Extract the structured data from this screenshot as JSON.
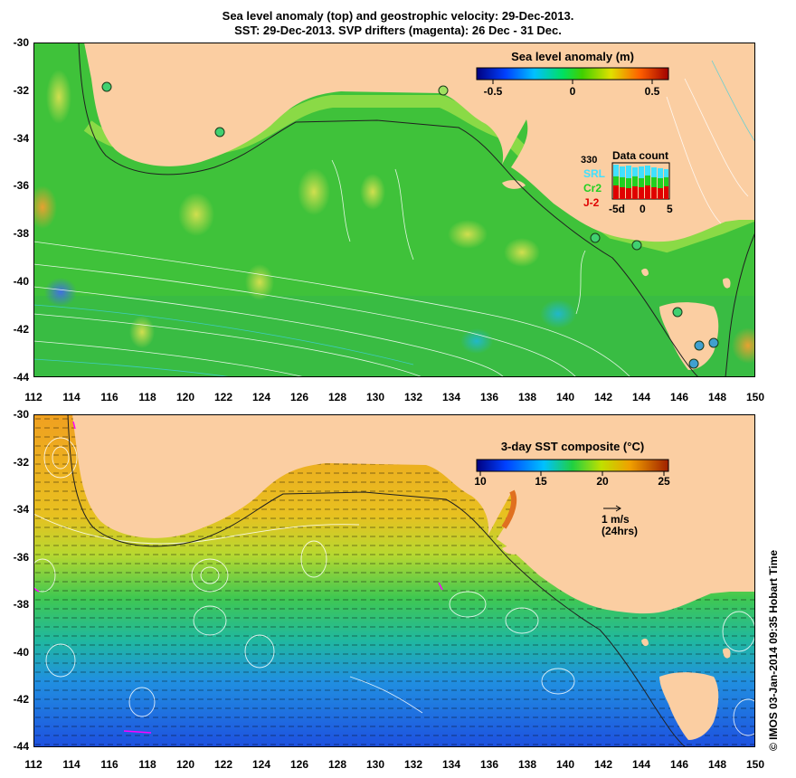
{
  "title": {
    "line1": "Sea level anomaly (top) and geostrophic velocity: 29-Dec-2013.",
    "line2": "SST: 29-Dec-2013. SVP drifters (magenta): 26 Dec - 31 Dec."
  },
  "axes": {
    "lat_labels": [
      "-30",
      "-32",
      "-34",
      "-36",
      "-38",
      "-40",
      "-42",
      "-44"
    ],
    "lon_labels": [
      "112",
      "114",
      "116",
      "118",
      "120",
      "122",
      "124",
      "126",
      "128",
      "130",
      "132",
      "134",
      "136",
      "138",
      "140",
      "142",
      "144",
      "146",
      "148",
      "150"
    ]
  },
  "top_panel": {
    "colorbar": {
      "title": "Sea level anomaly (m)",
      "ticks": [
        "-0.5",
        "0",
        "0.5"
      ],
      "range": [
        -0.6,
        0.6
      ]
    },
    "data_count": {
      "title": "Data count",
      "max_label": "330",
      "satellites": [
        "SRL",
        "Cr2",
        "J-2"
      ],
      "x_ticks": [
        "-5d",
        "0",
        "5"
      ]
    }
  },
  "bottom_panel": {
    "colorbar": {
      "title": "3-day SST composite (°C)",
      "ticks": [
        "10",
        "15",
        "20",
        "25"
      ],
      "range": [
        10,
        25
      ]
    },
    "velocity_scale": {
      "label": "1 m/s",
      "sub_label": "(24hrs)"
    }
  },
  "credit": "© IMOS 03-Jan-2014 09:35 Hobart Time",
  "colors": {
    "land": "#fbcea2",
    "ocean_slu": "#33cc33",
    "sst_warm": "#f0a020",
    "sst_cold": "#1e5ae6",
    "drifters": "#ff00ff"
  }
}
